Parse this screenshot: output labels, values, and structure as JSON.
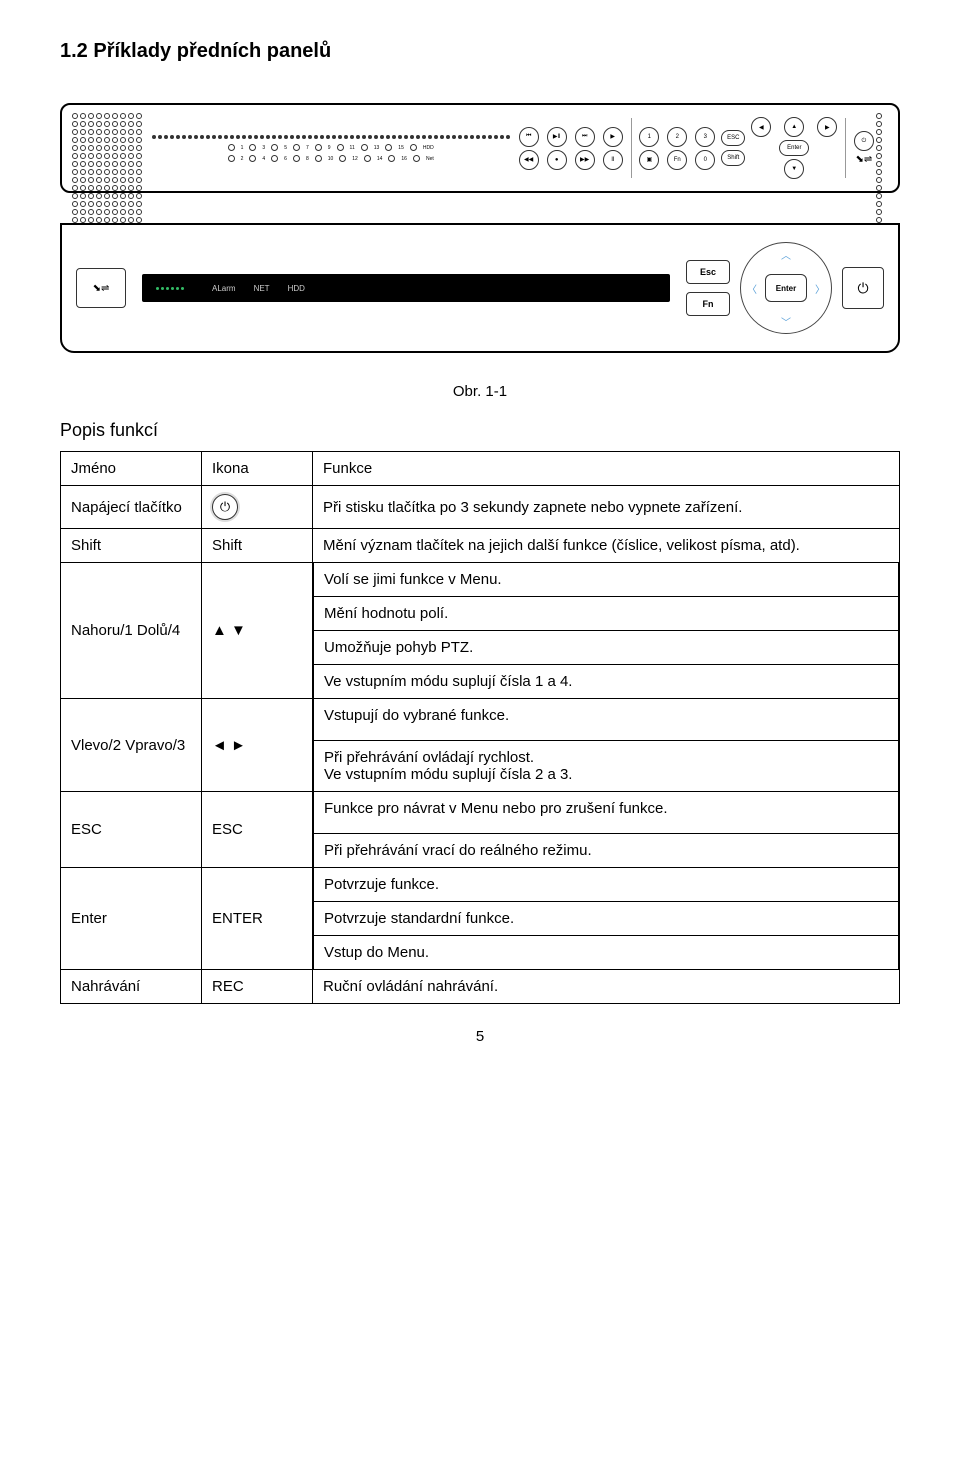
{
  "heading": "1.2  Příklady předních panelů",
  "caption": "Obr. 1-1",
  "section_label": "Popis funkcí",
  "panel2": {
    "display_labels": [
      "ALarm",
      "NET",
      "HDD"
    ],
    "esc": "Esc",
    "fn": "Fn",
    "enter": "Enter"
  },
  "table": {
    "headers": {
      "name": "Jméno",
      "icon": "Ikona",
      "func": "Funkce"
    },
    "rows": [
      {
        "name": "Napájecí tlačítko",
        "icon_type": "power",
        "func": "Při stisku tlačítka po 3 sekundy zapnete nebo vypnete zařízení."
      },
      {
        "name": "Shift",
        "icon_text": "Shift",
        "func": "Mění význam tlačítek na jejich další funkce (číslice, velikost písma, atd)."
      },
      {
        "name": "Nahoru/1 Dolů/4",
        "icon_text": "▲  ▼",
        "sub": [
          "Volí se jimi funkce v Menu.",
          "Mění hodnotu polí.",
          "Umožňuje pohyb PTZ.",
          "Ve vstupním módu suplují čísla 1 a 4."
        ]
      },
      {
        "name": "Vlevo/2 Vpravo/3",
        "icon_text": "◄  ►",
        "sub": [
          "Vstupují do vybrané funkce.",
          "Při přehrávání ovládají rychlost.\nVe vstupním módu suplují čísla 2 a 3."
        ]
      },
      {
        "name": "ESC",
        "icon_text": "ESC",
        "sub": [
          "Funkce pro návrat v Menu nebo pro zrušení funkce.",
          "Při přehrávání vrací do reálného režimu."
        ]
      },
      {
        "name": "Enter",
        "icon_text": "ENTER",
        "sub": [
          "Potvrzuje funkce.",
          "Potvrzuje standardní funkce.",
          "Vstup do Menu."
        ]
      },
      {
        "name": "Nahrávání",
        "icon_text": "REC",
        "func": "Ruční ovládání nahrávání."
      }
    ]
  },
  "page_number": "5"
}
